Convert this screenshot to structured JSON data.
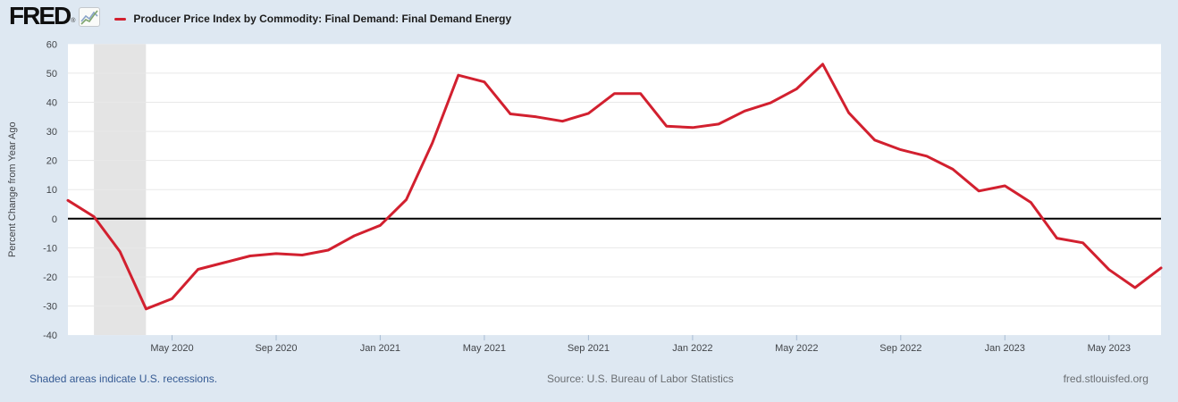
{
  "header": {
    "logo_text": "FRED",
    "reg_mark": "®"
  },
  "footer": {
    "recessions_note": "Shaded areas indicate U.S. recessions.",
    "source": "Source: U.S. Bureau of Labor Statistics",
    "site": "fred.stlouisfed.org"
  },
  "chart_data": {
    "type": "line",
    "title": "Producer Price Index by Commodity: Final Demand: Final Demand Energy",
    "ylabel": "Percent Change from Year Ago",
    "ylim": [
      -40,
      60
    ],
    "y_ticks": [
      60,
      50,
      40,
      30,
      20,
      10,
      0,
      -10,
      -20,
      -30,
      -40
    ],
    "x": [
      "Jan 2020",
      "Feb 2020",
      "Mar 2020",
      "Apr 2020",
      "May 2020",
      "Jun 2020",
      "Jul 2020",
      "Aug 2020",
      "Sep 2020",
      "Oct 2020",
      "Nov 2020",
      "Dec 2020",
      "Jan 2021",
      "Feb 2021",
      "Mar 2021",
      "Apr 2021",
      "May 2021",
      "Jun 2021",
      "Jul 2021",
      "Aug 2021",
      "Sep 2021",
      "Oct 2021",
      "Nov 2021",
      "Dec 2021",
      "Jan 2022",
      "Feb 2022",
      "Mar 2022",
      "Apr 2022",
      "May 2022",
      "Jun 2022",
      "Jul 2022",
      "Aug 2022",
      "Sep 2022",
      "Oct 2022",
      "Nov 2022",
      "Dec 2022",
      "Jan 2023",
      "Feb 2023",
      "Mar 2023",
      "Apr 2023",
      "May 2023",
      "Jun 2023",
      "Jul 2023"
    ],
    "values": [
      6.3,
      0.7,
      -11.3,
      -31.0,
      -27.5,
      -17.4,
      -15.1,
      -12.8,
      -12.0,
      -12.5,
      -10.8,
      -5.9,
      -2.3,
      6.5,
      26.0,
      49.3,
      47.0,
      36.0,
      35.0,
      33.5,
      36.2,
      43.0,
      43.0,
      31.8,
      31.3,
      32.5,
      37.0,
      39.8,
      44.6,
      53.1,
      36.4,
      27.0,
      23.7,
      21.5,
      17.0,
      9.5,
      11.3,
      5.6,
      -6.7,
      -8.3,
      -17.5,
      -23.7,
      -16.9
    ],
    "x_ticks": [
      {
        "index": 4,
        "label": "May 2020"
      },
      {
        "index": 8,
        "label": "Sep 2020"
      },
      {
        "index": 12,
        "label": "Jan 2021"
      },
      {
        "index": 16,
        "label": "May 2021"
      },
      {
        "index": 20,
        "label": "Sep 2021"
      },
      {
        "index": 24,
        "label": "Jan 2022"
      },
      {
        "index": 28,
        "label": "May 2022"
      },
      {
        "index": 32,
        "label": "Sep 2022"
      },
      {
        "index": 36,
        "label": "Jan 2023"
      },
      {
        "index": 40,
        "label": "May 2023"
      }
    ],
    "recession_band": {
      "start": "Feb 2020",
      "end": "Apr 2020"
    },
    "grid": "horizontal",
    "legend_position": "top",
    "colors": {
      "background": "#dee8f2",
      "plot_background": "#ffffff",
      "recession": "#e4e4e4",
      "gridline": "#e8e8e8",
      "zero_line": "#000000",
      "line": "#d2202f",
      "tick_mark": "#a8bcd3"
    }
  }
}
